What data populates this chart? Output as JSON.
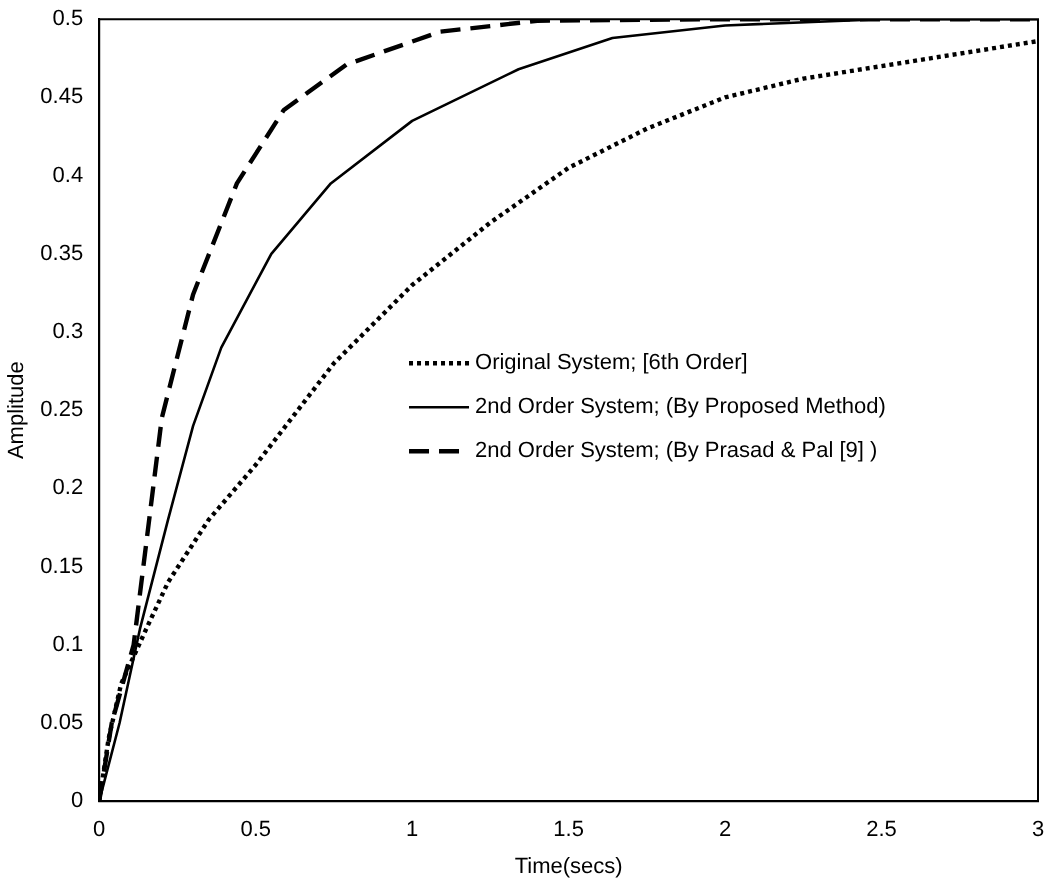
{
  "chart_data": {
    "type": "line",
    "xlabel": "Time(secs)",
    "ylabel": "Amplitude",
    "xlim": [
      0,
      3
    ],
    "xticks": [
      0,
      0.5,
      1,
      1.5,
      2,
      2.5,
      3
    ],
    "ylim": [
      0,
      0.5
    ],
    "yticks": [
      0,
      0.05,
      0.1,
      0.15,
      0.2,
      0.25,
      0.3,
      0.35,
      0.4,
      0.45,
      0.5
    ],
    "grid": false,
    "legend": "right",
    "marker": "none",
    "series": [
      {
        "name": "Original System; [6th Order]",
        "color": "#000000",
        "line_style": "dotted",
        "x": [
          0,
          0.03,
          0.07,
          0.15,
          0.22,
          0.35,
          0.5,
          0.75,
          1,
          1.25,
          1.5,
          1.75,
          2,
          2.25,
          2.5,
          2.75,
          3
        ],
        "values": [
          0,
          0.04,
          0.075,
          0.11,
          0.14,
          0.18,
          0.215,
          0.28,
          0.33,
          0.37,
          0.405,
          0.43,
          0.45,
          0.462,
          0.47,
          0.478,
          0.486
        ]
      },
      {
        "name": "2nd Order System; (By Proposed Method)",
        "color": "#000000",
        "line_style": "solid",
        "x": [
          0,
          0.065,
          0.13,
          0.22,
          0.3,
          0.39,
          0.55,
          0.74,
          1,
          1.34,
          1.64,
          2,
          2.5,
          3
        ],
        "values": [
          0,
          0.05,
          0.11,
          0.18,
          0.24,
          0.29,
          0.35,
          0.395,
          0.435,
          0.468,
          0.488,
          0.496,
          0.5,
          0.5
        ]
      },
      {
        "name": "2nd Order System; (By Prasad & Pal [9] )",
        "color": "#000000",
        "line_style": "dashed",
        "x": [
          0,
          0.04,
          0.11,
          0.2,
          0.3,
          0.44,
          0.59,
          0.79,
          1.09,
          1.4,
          2,
          3
        ],
        "values": [
          0,
          0.05,
          0.1,
          0.245,
          0.324,
          0.395,
          0.442,
          0.471,
          0.492,
          0.499,
          0.5,
          0.5
        ]
      }
    ]
  }
}
